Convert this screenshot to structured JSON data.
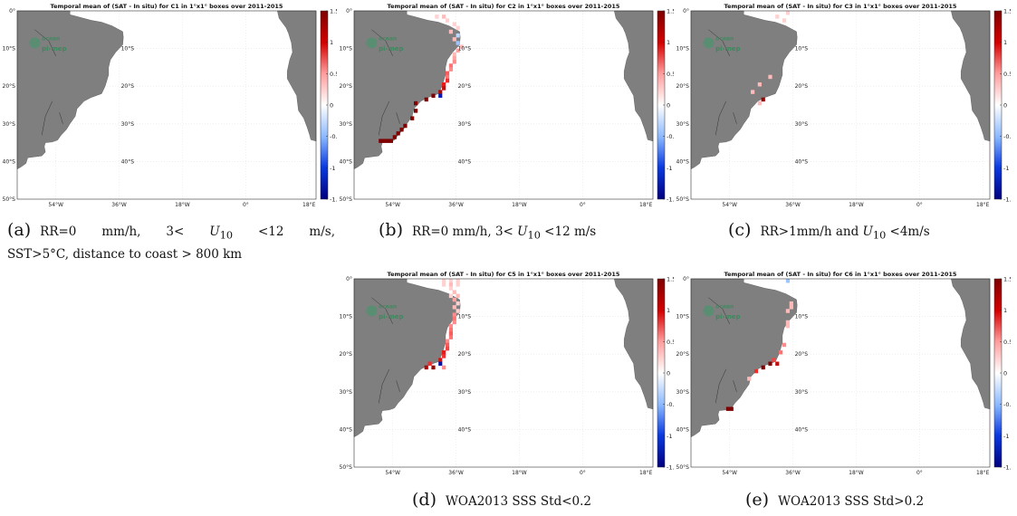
{
  "panels": [
    {
      "id": "a",
      "title": "Temporal mean of (SAT - In situ) for C1 in 1°x1° boxes over 2011-2015"
    },
    {
      "id": "b",
      "title": "Temporal mean of (SAT - In situ) for C2 in 1°x1° boxes over 2011-2015"
    },
    {
      "id": "c",
      "title": "Temporal mean of (SAT - In situ) for C3 in 1°x1° boxes over 2011-2015"
    },
    {
      "id": "d",
      "title": "Temporal mean of (SAT - In situ) for C5 in 1°x1° boxes over 2011-2015"
    },
    {
      "id": "e",
      "title": "Temporal mean of (SAT - In situ) for C6 in 1°x1° boxes over 2011-2015"
    }
  ],
  "axes": {
    "x_ticks": [
      "54°W",
      "36°W",
      "18°W",
      "0°",
      "18°E"
    ],
    "y_ticks": [
      "0°",
      "10°S",
      "20°S",
      "30°S",
      "40°S",
      "50°S"
    ]
  },
  "colorbar": {
    "ticks": [
      "1.5",
      "1",
      "0.5",
      "0",
      "-0.5",
      "-1",
      "-1.5"
    ],
    "colors": {
      "high": "#7f0000",
      "mid": "#ffffff",
      "low": "#00007f"
    }
  },
  "watermark": {
    "line1": "ocean",
    "line2": "pi-mep"
  },
  "captions": {
    "a": {
      "tag": "(a)",
      "line1": "RR=0 mm/h, 3< U10 <12 m/s,",
      "line2": "SST>5°C, distance to coast > 800 km"
    },
    "b": {
      "tag": "(b)",
      "text": "RR=0 mm/h, 3< U10 <12 m/s"
    },
    "c": {
      "tag": "(c)",
      "text": "RR>1mm/h and U10 <4m/s"
    },
    "d": {
      "tag": "(d)",
      "text": "WOA2013 SSS Std<0.2"
    },
    "e": {
      "tag": "(e)",
      "text": "WOA2013 SSS Std>0.2"
    }
  },
  "land_color": "#7f7f7f",
  "chart_data": [
    {
      "panel": "a",
      "type": "heatmap",
      "cells": []
    },
    {
      "panel": "b",
      "type": "heatmap",
      "cells": [
        [
          -42,
          -1,
          0.2
        ],
        [
          -40,
          -1,
          0.3
        ],
        [
          -39,
          -2,
          0.2
        ],
        [
          -37,
          -3,
          0.2
        ],
        [
          -36,
          -4,
          0.2
        ],
        [
          -38,
          -5,
          0.3
        ],
        [
          -36,
          -6,
          -0.2
        ],
        [
          -37,
          -7,
          0.3
        ],
        [
          -36,
          -8,
          -0.3
        ],
        [
          -35,
          -9,
          0.3
        ],
        [
          -36,
          -10,
          0.4
        ],
        [
          -37,
          -11,
          0.3
        ],
        [
          -37,
          -12,
          0.4
        ],
        [
          -37,
          -13,
          0.5
        ],
        [
          -38,
          -14,
          0.6
        ],
        [
          -38,
          -15,
          0.5
        ],
        [
          -39,
          -16,
          0.7
        ],
        [
          -39,
          -17,
          0.6
        ],
        [
          -39,
          -18,
          0.9
        ],
        [
          -40,
          -19,
          1.0
        ],
        [
          -40,
          -20,
          1.2
        ],
        [
          -41,
          -21,
          1.3
        ],
        [
          -43,
          -22,
          1.5
        ],
        [
          -45,
          -23,
          1.5
        ],
        [
          -41,
          -22,
          -1.2
        ],
        [
          -48,
          -24,
          1.5
        ],
        [
          -48,
          -26,
          1.5
        ],
        [
          -49,
          -28,
          1.5
        ],
        [
          -51,
          -30,
          1.5
        ],
        [
          -52,
          -31,
          1.5
        ],
        [
          -53,
          -32,
          1.5
        ],
        [
          -54,
          -33,
          1.5
        ],
        [
          -55,
          -34,
          1.5
        ],
        [
          -56,
          -34,
          1.5
        ],
        [
          -57,
          -34,
          1.5
        ],
        [
          -58,
          -34,
          1.5
        ]
      ]
    },
    {
      "panel": "c",
      "type": "heatmap",
      "cells": [
        [
          -38,
          0,
          0.2
        ],
        [
          -41,
          -1,
          0.2
        ],
        [
          -39,
          -2,
          0.2
        ],
        [
          -43,
          -17,
          0.3
        ],
        [
          -46,
          -19,
          0.3
        ],
        [
          -48,
          -21,
          0.3
        ],
        [
          -45,
          -23,
          1.4
        ],
        [
          -46,
          -24,
          0.3
        ]
      ]
    },
    {
      "panel": "d",
      "type": "heatmap",
      "cells": [
        [
          -40,
          0,
          0.2
        ],
        [
          -38,
          0,
          0.2
        ],
        [
          -36,
          0,
          0.2
        ],
        [
          -40,
          -1,
          0.2
        ],
        [
          -38,
          -1,
          0.3
        ],
        [
          -36,
          -1,
          0.2
        ],
        [
          -38,
          -2,
          0.2
        ],
        [
          -37,
          -3,
          0.3
        ],
        [
          -38,
          -4,
          0.2
        ],
        [
          -36,
          -4,
          0.3
        ],
        [
          -37,
          -5,
          0.4
        ],
        [
          -36,
          -6,
          0.2
        ],
        [
          -37,
          -7,
          0.3
        ],
        [
          -36,
          -8,
          0.2
        ],
        [
          -37,
          -9,
          0.5
        ],
        [
          -37,
          -10,
          0.6
        ],
        [
          -37,
          -11,
          0.5
        ],
        [
          -38,
          -12,
          0.5
        ],
        [
          -38,
          -13,
          0.6
        ],
        [
          -38,
          -14,
          0.7
        ],
        [
          -38,
          -15,
          0.6
        ],
        [
          -39,
          -16,
          0.5
        ],
        [
          -39,
          -17,
          0.7
        ],
        [
          -39,
          -18,
          0.8
        ],
        [
          -40,
          -19,
          1.0
        ],
        [
          -40,
          -20,
          0.9
        ],
        [
          -41,
          -21,
          1.1
        ],
        [
          -41,
          -22,
          -1.3
        ],
        [
          -43,
          -23,
          1.4
        ],
        [
          -45,
          -23,
          1.3
        ],
        [
          -44,
          -22,
          0.9
        ],
        [
          -40,
          -23,
          0.5
        ]
      ]
    },
    {
      "panel": "e",
      "type": "heatmap",
      "cells": [
        [
          -38,
          0,
          -0.3
        ],
        [
          -37,
          -6,
          0.3
        ],
        [
          -37,
          -7,
          0.3
        ],
        [
          -38,
          -8,
          0.3
        ],
        [
          -38,
          -11,
          0.3
        ],
        [
          -38,
          -12,
          0.3
        ],
        [
          -39,
          -17,
          0.5
        ],
        [
          -40,
          -19,
          0.6
        ],
        [
          -42,
          -21,
          0.8
        ],
        [
          -41,
          -22,
          1.2
        ],
        [
          -43,
          -22,
          1.5
        ],
        [
          -45,
          -23,
          1.5
        ],
        [
          -47,
          -24,
          0.9
        ],
        [
          -49,
          -26,
          0.3
        ],
        [
          -54,
          -34,
          1.5
        ],
        [
          -55,
          -34,
          1.5
        ]
      ]
    }
  ]
}
